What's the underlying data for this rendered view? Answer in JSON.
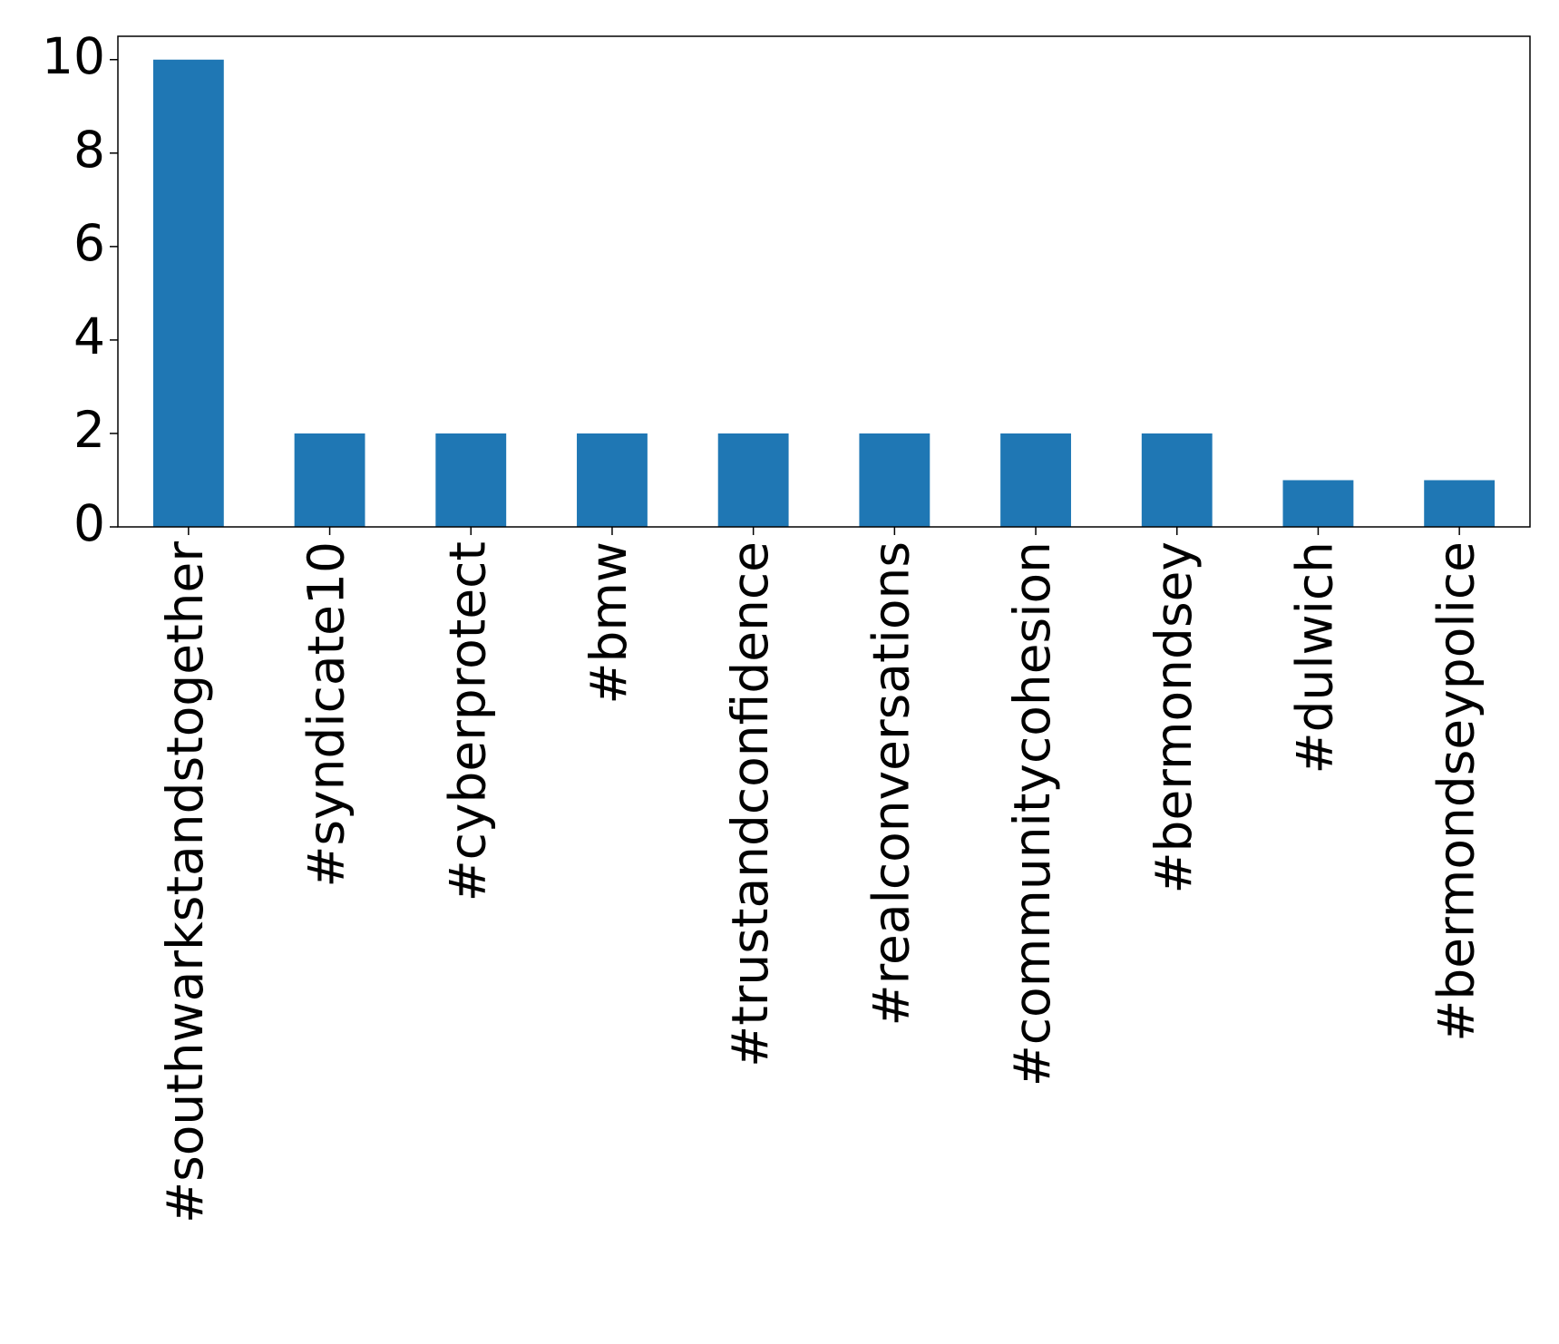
{
  "chart_data": {
    "type": "bar",
    "categories": [
      "#southwarkstandstogether",
      "#syndicate10",
      "#cyberprotect",
      "#bmw",
      "#trustandconfidence",
      "#realconversations",
      "#communitycohesion",
      "#bermondsey",
      "#dulwich",
      "#bermondseypolice"
    ],
    "values": [
      10,
      2,
      2,
      2,
      2,
      2,
      2,
      2,
      1,
      1
    ],
    "color": "#1f77b4",
    "ylim": [
      0,
      10.5
    ],
    "yticks": [
      0,
      2,
      4,
      6,
      8,
      10
    ],
    "grid": false
  }
}
